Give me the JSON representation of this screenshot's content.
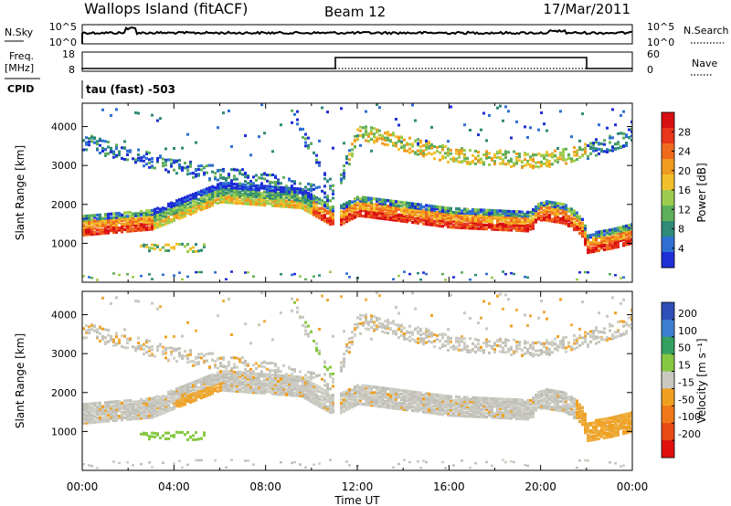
{
  "header": {
    "station": "Wallops Island (fitACF)",
    "beam": "Beam 12",
    "date": "17/Mar/2011"
  },
  "top_panels": {
    "nsky_label": "N.Sky",
    "nsky_ticks": [
      "10^5",
      "10^0"
    ],
    "nsearch_label": "N.Search",
    "nsearch_ticks": [
      "10^5",
      "10^0"
    ],
    "freq_label_1": "Freq.",
    "freq_label_2": "[MHz]",
    "freq_ticks": [
      "18",
      "8"
    ],
    "nave_label": "Nave",
    "nave_ticks": [
      "60",
      "0"
    ],
    "cpid_label": "CPID",
    "cpid_value": "tau (fast) -503"
  },
  "chart_data": [
    {
      "type": "heatmap",
      "name": "power",
      "xlabel": "",
      "ylabel": "Slant Range [km]",
      "xlim": [
        "00:00",
        "24:00"
      ],
      "ylim": [
        0,
        4600
      ],
      "yticks": [
        "1000",
        "2000",
        "3000",
        "4000"
      ],
      "colorbar": {
        "label": "Power [dB]",
        "ticks": [
          "4",
          "8",
          "12",
          "16",
          "20",
          "24",
          "28"
        ],
        "colors": [
          "#1e2fd6",
          "#2f6fd1",
          "#2f8a78",
          "#5fae5a",
          "#9ccc4e",
          "#f2c02a",
          "#f09a20",
          "#f06a1e",
          "#e8351c",
          "#d80f12"
        ]
      },
      "bands": [
        {
          "desc": "main echo band",
          "time": [
            "00:00",
            "03:00",
            "06:00",
            "09:30",
            "11:00",
            "12:00",
            "16:00",
            "19:30",
            "20:00",
            "21:00",
            "21:45",
            "22:00",
            "23:00",
            "24:00"
          ],
          "range": [
            1500,
            1650,
            2350,
            2200,
            1700,
            2000,
            1700,
            1600,
            1900,
            1800,
            1500,
            1050,
            1150,
            1300
          ],
          "width": 350
        },
        {
          "desc": "upper echo band",
          "time": [
            "00:00",
            "02:00",
            "04:00",
            "06:00",
            "08:00",
            "09:30",
            "11:00",
            "12:00",
            "16:00",
            "20:00",
            "22:00",
            "24:00"
          ],
          "range": [
            3650,
            3300,
            3000,
            2800,
            2650,
            2400,
            2300,
            3900,
            3300,
            3150,
            3400,
            3800
          ],
          "width": 400
        }
      ]
    },
    {
      "type": "heatmap",
      "name": "velocity",
      "xlabel": "Time UT",
      "ylabel": "Slant Range [km]",
      "xticks": [
        "00:00",
        "04:00",
        "08:00",
        "12:00",
        "16:00",
        "20:00",
        "00:00"
      ],
      "ylim": [
        0,
        4600
      ],
      "yticks": [
        "1000",
        "2000",
        "3000",
        "4000"
      ],
      "colorbar": {
        "label": "Velocity [m s⁻¹]",
        "ticks": [
          "200",
          "100",
          "50",
          "15",
          "-15",
          "-50",
          "-100",
          "-200"
        ],
        "colors": [
          "#2f4fb8",
          "#3c7fd0",
          "#35a060",
          "#86c840",
          "#c8c8c0",
          "#f0a020",
          "#f07818",
          "#e84a14",
          "#e01010"
        ]
      }
    }
  ]
}
